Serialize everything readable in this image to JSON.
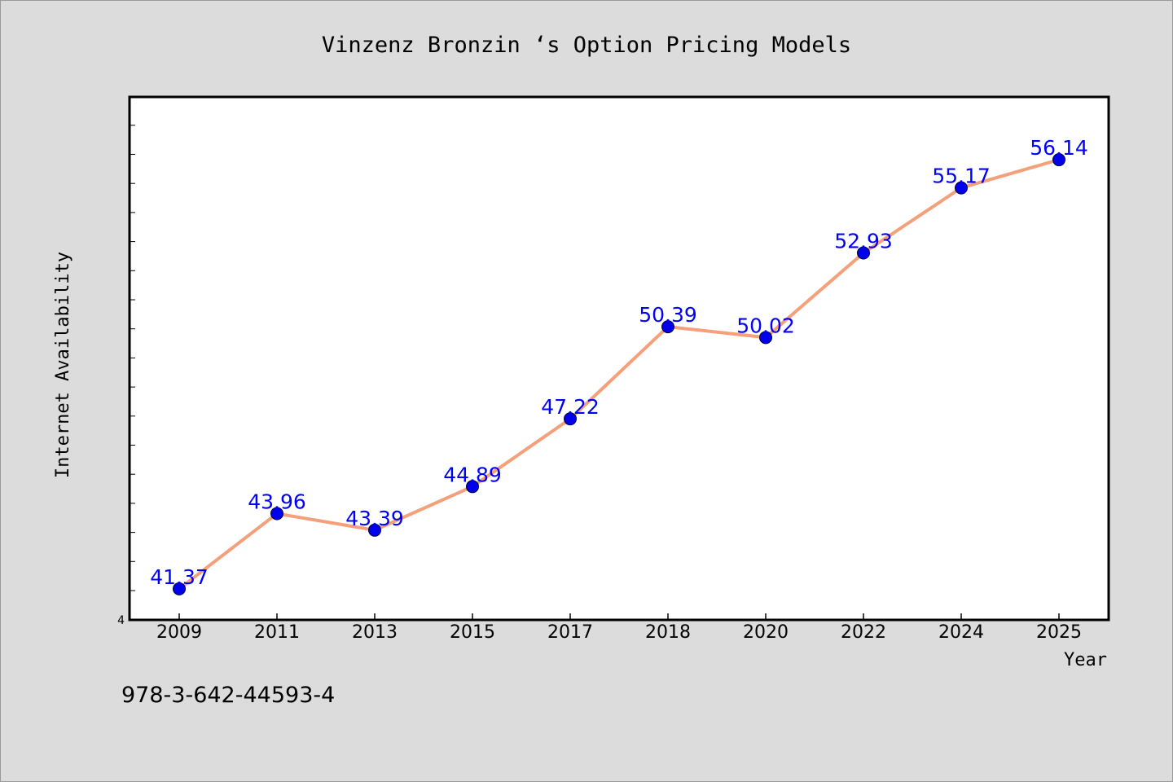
{
  "footnote": "978-3-642-44593-4",
  "colors": {
    "background": "#dcdcdc",
    "plot_background": "#ffffff",
    "line": "#f4a07a",
    "marker": "#0000ee",
    "data_label": "#0000ff"
  },
  "chart_data": {
    "type": "line",
    "title": "Vinzenz Bronzin ‘s Option Pricing Models",
    "xlabel": "Year",
    "ylabel": "Internet Availability",
    "categories": [
      "2009",
      "2011",
      "2013",
      "2015",
      "2017",
      "2018",
      "2020",
      "2022",
      "2024",
      "2025"
    ],
    "series": [
      {
        "values": [
          41.37,
          43.96,
          43.39,
          44.89,
          47.22,
          50.39,
          50.02,
          52.93,
          55.17,
          56.14
        ],
        "labels": [
          "41.37",
          "43.96",
          "43.39",
          "44.89",
          "47.22",
          "50.39",
          "50.02",
          "52.93",
          "55.17",
          "56.14"
        ]
      }
    ],
    "y_tick_labels": [
      "4"
    ],
    "ylim": [
      40.3,
      58.3
    ],
    "grid": false,
    "legend": "none"
  }
}
